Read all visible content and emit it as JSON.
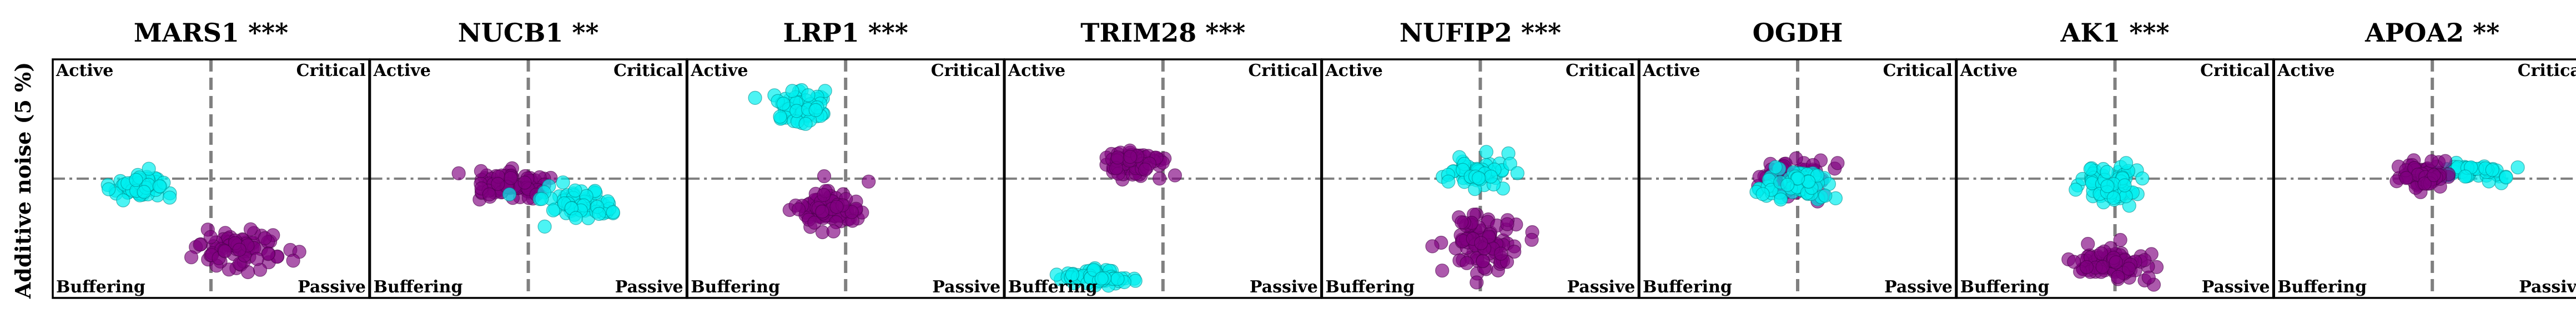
{
  "figure": {
    "ylabel": "Additive noise (5 %)",
    "quadrant_labels": {
      "top_left": "Active",
      "top_right": "Critical",
      "bottom_left": "Buffering",
      "bottom_right": "Passive"
    },
    "colors": {
      "cyan": "#00f0f0",
      "purple": "#800080",
      "frame": "#000000",
      "guide": "#808080"
    }
  },
  "chart_data": [
    {
      "type": "scatter",
      "title": "MARS1 ***",
      "xlim": [
        -1,
        1
      ],
      "ylim": [
        -1,
        1
      ],
      "series": [
        {
          "color": "cyan",
          "center": [
            -0.45,
            -0.08
          ],
          "spread": [
            0.17,
            0.12
          ],
          "n": 60
        },
        {
          "color": "purple",
          "center": [
            0.2,
            -0.6
          ],
          "spread": [
            0.25,
            0.16
          ],
          "n": 80
        }
      ]
    },
    {
      "type": "scatter",
      "title": "NUCB1 **",
      "xlim": [
        -1,
        1
      ],
      "ylim": [
        -1,
        1
      ],
      "series": [
        {
          "color": "purple",
          "center": [
            -0.1,
            -0.06
          ],
          "spread": [
            0.21,
            0.1
          ],
          "n": 80
        },
        {
          "color": "cyan",
          "center": [
            0.32,
            -0.22
          ],
          "spread": [
            0.2,
            0.11
          ],
          "n": 70
        }
      ]
    },
    {
      "type": "scatter",
      "title": "LRP1 ***",
      "xlim": [
        -1,
        1
      ],
      "ylim": [
        -1,
        1
      ],
      "series": [
        {
          "color": "cyan",
          "center": [
            -0.31,
            0.6
          ],
          "spread": [
            0.15,
            0.12
          ],
          "n": 60
        },
        {
          "color": "purple",
          "center": [
            -0.1,
            -0.27
          ],
          "spread": [
            0.18,
            0.16
          ],
          "n": 80
        }
      ]
    },
    {
      "type": "scatter",
      "title": "TRIM28 ***",
      "xlim": [
        -1,
        1
      ],
      "ylim": [
        -1,
        1
      ],
      "series": [
        {
          "color": "purple",
          "center": [
            -0.19,
            0.13
          ],
          "spread": [
            0.18,
            0.1
          ],
          "n": 80
        },
        {
          "color": "cyan",
          "center": [
            -0.42,
            -0.82
          ],
          "spread": [
            0.21,
            0.07
          ],
          "n": 70
        }
      ]
    },
    {
      "type": "scatter",
      "title": "NUFIP2 ***",
      "xlim": [
        -1,
        1
      ],
      "ylim": [
        -1,
        1
      ],
      "series": [
        {
          "color": "cyan",
          "center": [
            -0.03,
            0.05
          ],
          "spread": [
            0.17,
            0.1
          ],
          "n": 60
        },
        {
          "color": "purple",
          "center": [
            0.0,
            -0.55
          ],
          "spread": [
            0.19,
            0.2
          ],
          "n": 90
        }
      ]
    },
    {
      "type": "scatter",
      "title": "OGDH",
      "xlim": [
        -1,
        1
      ],
      "ylim": [
        -1,
        1
      ],
      "series": [
        {
          "color": "purple",
          "center": [
            -0.02,
            0.0
          ],
          "spread": [
            0.2,
            0.14
          ],
          "n": 80
        },
        {
          "color": "cyan",
          "center": [
            0.0,
            -0.04
          ],
          "spread": [
            0.18,
            0.14
          ],
          "n": 60
        }
      ]
    },
    {
      "type": "scatter",
      "title": "AK1 ***",
      "xlim": [
        -1,
        1
      ],
      "ylim": [
        -1,
        1
      ],
      "series": [
        {
          "color": "cyan",
          "center": [
            0.0,
            -0.04
          ],
          "spread": [
            0.16,
            0.15
          ],
          "n": 70
        },
        {
          "color": "purple",
          "center": [
            0.0,
            -0.7
          ],
          "spread": [
            0.22,
            0.12
          ],
          "n": 90
        }
      ]
    },
    {
      "type": "scatter",
      "title": "APOA2 **",
      "xlim": [
        -1,
        1
      ],
      "ylim": [
        -1,
        1
      ],
      "series": [
        {
          "color": "cyan",
          "center": [
            0.2,
            0.06
          ],
          "spread": [
            0.2,
            0.07
          ],
          "n": 60
        },
        {
          "color": "purple",
          "center": [
            -0.05,
            0.03
          ],
          "spread": [
            0.16,
            0.1
          ],
          "n": 70
        }
      ]
    }
  ]
}
